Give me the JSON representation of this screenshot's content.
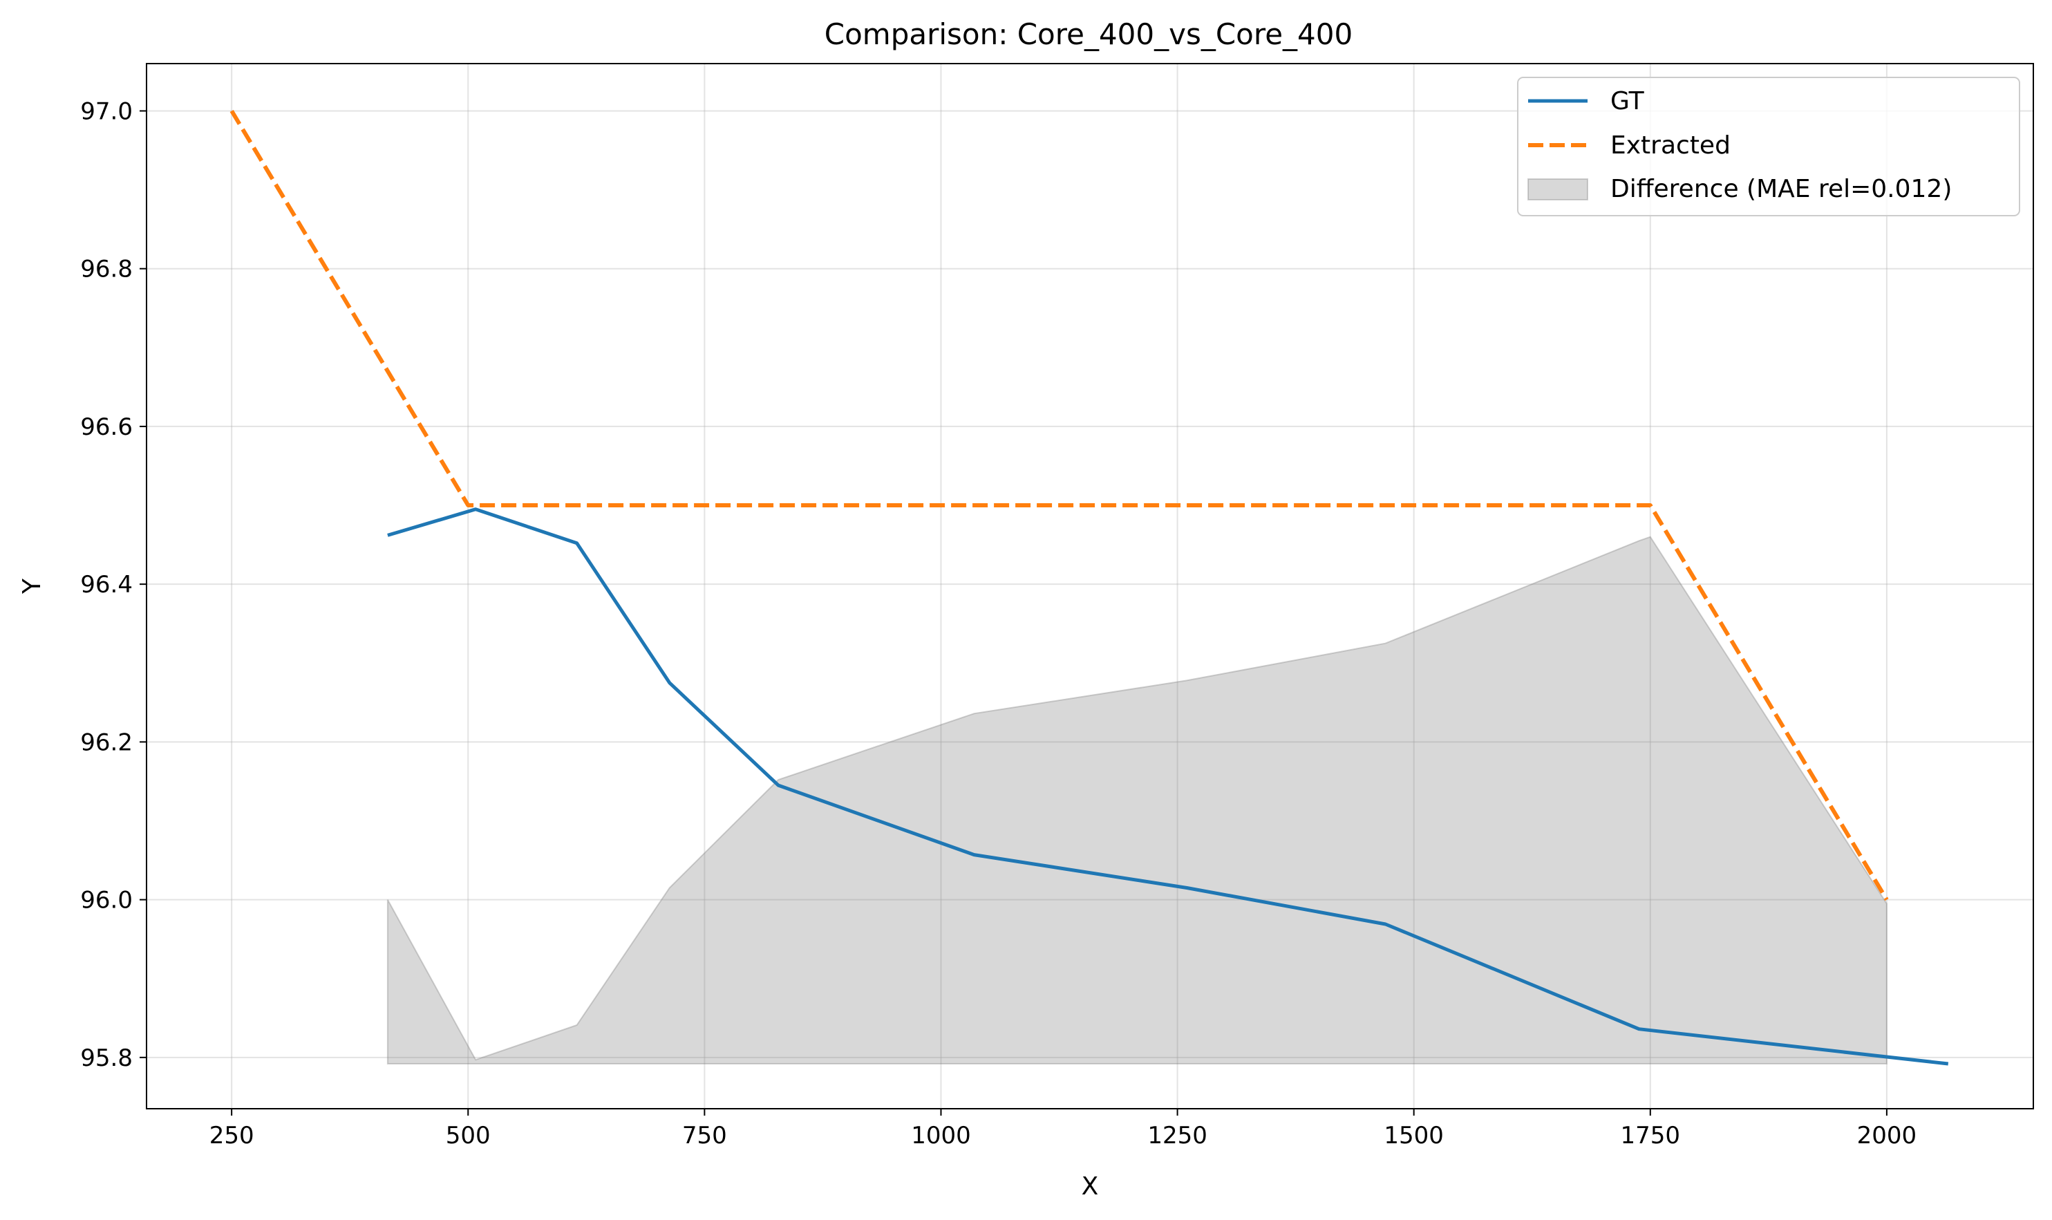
{
  "chart_data": {
    "type": "line",
    "title": "Comparison: Core_400_vs_Core_400",
    "xlabel": "X",
    "ylabel": "Y",
    "xlim": [
      160,
      2155
    ],
    "ylim": [
      95.735,
      97.06
    ],
    "xticks": [
      250,
      500,
      750,
      1000,
      1250,
      1500,
      1750,
      2000
    ],
    "yticks": [
      95.8,
      96.0,
      96.2,
      96.4,
      96.6,
      96.8,
      97.0
    ],
    "grid": true,
    "legend_position": "top-right",
    "series": [
      {
        "name": "GT",
        "style": "solid",
        "color": "#1f77b4",
        "x": [
          415,
          508,
          615,
          713,
          828,
          1035,
          1260,
          1470,
          1738,
          2065
        ],
        "y": [
          96.462,
          96.495,
          96.452,
          96.275,
          96.145,
          96.057,
          96.015,
          95.969,
          95.836,
          95.792
        ]
      },
      {
        "name": "Extracted",
        "style": "dashed",
        "color": "#ff7f0e",
        "x": [
          250,
          500,
          1750,
          2000
        ],
        "y": [
          97.0,
          96.5,
          96.5,
          96.0
        ]
      }
    ],
    "fill": {
      "name": "Difference (MAE rel=0.012)",
      "color": "#7f7f7f",
      "x": [
        415,
        508,
        615,
        713,
        828,
        1035,
        1260,
        1470,
        1738,
        1750,
        2000
      ],
      "y_top": [
        96.0,
        95.797,
        95.841,
        96.015,
        96.152,
        96.236,
        96.278,
        96.325,
        96.455,
        96.46,
        95.995
      ],
      "y_bottom": 95.792
    }
  }
}
